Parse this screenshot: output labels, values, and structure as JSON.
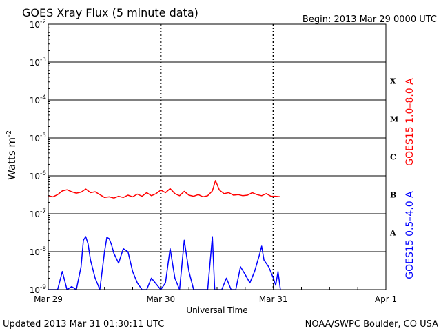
{
  "header": {
    "title": "GOES Xray Flux (5 minute data)",
    "begin": "Begin:  2013 Mar 29 0000 UTC"
  },
  "footer": {
    "updated": "Updated 2013 Mar 31 01:30:11 UTC",
    "credit": "NOAA/SWPC Boulder, CO USA"
  },
  "colors": {
    "long_channel": "#ff0000",
    "short_channel": "#0000ff",
    "axes": "#000000",
    "background": "#ffffff"
  },
  "chart_data": {
    "type": "line",
    "title": "GOES Xray Flux (5 minute data)",
    "xlabel": "Universal Time",
    "ylabel_base": "Watts m",
    "ylabel_exp": "-2",
    "y_scale": "log",
    "ylim": [
      1e-09,
      0.01
    ],
    "xlim": [
      "2013-03-29",
      "2013-04-01"
    ],
    "x_ticks": [
      {
        "label": "Mar 29",
        "x": "2013-03-29"
      },
      {
        "label": "Mar 30",
        "x": "2013-03-30"
      },
      {
        "label": "Mar 31",
        "x": "2013-03-31"
      },
      {
        "label": "Apr 1",
        "x": "2013-04-01"
      }
    ],
    "y_ticks": [
      {
        "base": "10",
        "exp": "-2",
        "value": 0.01
      },
      {
        "base": "10",
        "exp": "-3",
        "value": 0.001
      },
      {
        "base": "10",
        "exp": "-4",
        "value": 0.0001
      },
      {
        "base": "10",
        "exp": "-5",
        "value": 1e-05
      },
      {
        "base": "10",
        "exp": "-6",
        "value": 1e-06
      },
      {
        "base": "10",
        "exp": "-7",
        "value": 1e-07
      },
      {
        "base": "10",
        "exp": "-8",
        "value": 1e-08
      },
      {
        "base": "10",
        "exp": "-9",
        "value": 1e-09
      }
    ],
    "flare_classes": [
      {
        "label": "X",
        "value": 0.000316
      },
      {
        "label": "M",
        "value": 3.16e-05
      },
      {
        "label": "C",
        "value": 3.16e-06
      },
      {
        "label": "B",
        "value": 3.16e-07
      },
      {
        "label": "A",
        "value": 3.16e-08
      }
    ],
    "grid": true,
    "series": [
      {
        "name": "GOES15 1.0–8.0 A",
        "color": "#ff0000",
        "points": [
          [
            "2013-03-29 00:00",
            3e-07
          ],
          [
            "2013-03-29 01:00",
            2.8e-07
          ],
          [
            "2013-03-29 02:00",
            3.2e-07
          ],
          [
            "2013-03-29 03:00",
            4e-07
          ],
          [
            "2013-03-29 04:00",
            4.3e-07
          ],
          [
            "2013-03-29 05:00",
            3.8e-07
          ],
          [
            "2013-03-29 06:00",
            3.5e-07
          ],
          [
            "2013-03-29 07:00",
            3.7e-07
          ],
          [
            "2013-03-29 08:00",
            4.5e-07
          ],
          [
            "2013-03-29 09:00",
            3.6e-07
          ],
          [
            "2013-03-29 10:00",
            3.8e-07
          ],
          [
            "2013-03-29 12:00",
            2.7e-07
          ],
          [
            "2013-03-29 13:00",
            2.8e-07
          ],
          [
            "2013-03-29 14:00",
            2.6e-07
          ],
          [
            "2013-03-29 15:00",
            2.9e-07
          ],
          [
            "2013-03-29 16:00",
            2.7e-07
          ],
          [
            "2013-03-29 17:00",
            3.1e-07
          ],
          [
            "2013-03-29 18:00",
            2.8e-07
          ],
          [
            "2013-03-29 19:00",
            3.3e-07
          ],
          [
            "2013-03-29 20:00",
            2.9e-07
          ],
          [
            "2013-03-29 21:00",
            3.6e-07
          ],
          [
            "2013-03-29 22:00",
            3e-07
          ],
          [
            "2013-03-29 23:00",
            3.4e-07
          ],
          [
            "2013-03-30 00:00",
            4.2e-07
          ],
          [
            "2013-03-30 01:00",
            3.6e-07
          ],
          [
            "2013-03-30 02:00",
            4.6e-07
          ],
          [
            "2013-03-30 03:00",
            3.4e-07
          ],
          [
            "2013-03-30 04:00",
            3e-07
          ],
          [
            "2013-03-30 05:00",
            3.9e-07
          ],
          [
            "2013-03-30 06:00",
            3.1e-07
          ],
          [
            "2013-03-30 07:00",
            2.9e-07
          ],
          [
            "2013-03-30 08:00",
            3.2e-07
          ],
          [
            "2013-03-30 09:00",
            2.8e-07
          ],
          [
            "2013-03-30 10:00",
            3e-07
          ],
          [
            "2013-03-30 11:00",
            4e-07
          ],
          [
            "2013-03-30 11:40",
            7.5e-07
          ],
          [
            "2013-03-30 12:30",
            4.2e-07
          ],
          [
            "2013-03-30 13:30",
            3.4e-07
          ],
          [
            "2013-03-30 14:30",
            3.6e-07
          ],
          [
            "2013-03-30 15:30",
            3.1e-07
          ],
          [
            "2013-03-30 16:30",
            3.2e-07
          ],
          [
            "2013-03-30 17:30",
            3e-07
          ],
          [
            "2013-03-30 18:30",
            3.1e-07
          ],
          [
            "2013-03-30 19:30",
            3.6e-07
          ],
          [
            "2013-03-30 20:30",
            3.2e-07
          ],
          [
            "2013-03-30 21:30",
            3e-07
          ],
          [
            "2013-03-30 22:30",
            3.4e-07
          ],
          [
            "2013-03-30 23:30",
            2.9e-07
          ],
          [
            "2013-03-31 00:30",
            2.9e-07
          ],
          [
            "2013-03-31 01:30",
            2.8e-07
          ]
        ]
      },
      {
        "name": "GOES15 0.5–4.0 A",
        "color": "#0000ff",
        "points": [
          [
            "2013-03-29 00:00",
            1e-09
          ],
          [
            "2013-03-29 02:00",
            1e-09
          ],
          [
            "2013-03-29 03:00",
            3e-09
          ],
          [
            "2013-03-29 04:00",
            1e-09
          ],
          [
            "2013-03-29 05:00",
            1.2e-09
          ],
          [
            "2013-03-29 06:00",
            1e-09
          ],
          [
            "2013-03-29 07:00",
            4e-09
          ],
          [
            "2013-03-29 07:30",
            2e-08
          ],
          [
            "2013-03-29 08:00",
            2.5e-08
          ],
          [
            "2013-03-29 08:30",
            1.6e-08
          ],
          [
            "2013-03-29 09:00",
            6e-09
          ],
          [
            "2013-03-29 10:00",
            2e-09
          ],
          [
            "2013-03-29 11:00",
            1e-09
          ],
          [
            "2013-03-29 12:00",
            1e-08
          ],
          [
            "2013-03-29 12:30",
            2.4e-08
          ],
          [
            "2013-03-29 13:00",
            2.2e-08
          ],
          [
            "2013-03-29 13:30",
            1.5e-08
          ],
          [
            "2013-03-29 14:00",
            9e-09
          ],
          [
            "2013-03-29 15:00",
            5e-09
          ],
          [
            "2013-03-29 16:00",
            1.2e-08
          ],
          [
            "2013-03-29 17:00",
            1e-08
          ],
          [
            "2013-03-29 18:00",
            3e-09
          ],
          [
            "2013-03-29 19:00",
            1.5e-09
          ],
          [
            "2013-03-29 20:00",
            1e-09
          ],
          [
            "2013-03-29 21:00",
            1e-09
          ],
          [
            "2013-03-29 22:00",
            2e-09
          ],
          [
            "2013-03-30 00:00",
            1e-09
          ],
          [
            "2013-03-30 01:00",
            1.5e-09
          ],
          [
            "2013-03-30 02:00",
            1.2e-08
          ],
          [
            "2013-03-30 03:00",
            2e-09
          ],
          [
            "2013-03-30 04:00",
            1e-09
          ],
          [
            "2013-03-30 05:00",
            2e-08
          ],
          [
            "2013-03-30 06:00",
            3e-09
          ],
          [
            "2013-03-30 07:00",
            1e-09
          ],
          [
            "2013-03-30 08:00",
            1e-09
          ],
          [
            "2013-03-30 09:00",
            1e-09
          ],
          [
            "2013-03-30 10:00",
            1e-09
          ],
          [
            "2013-03-30 11:00",
            2.5e-08
          ],
          [
            "2013-03-30 11:30",
            1e-09
          ],
          [
            "2013-03-30 13:00",
            1e-09
          ],
          [
            "2013-03-30 14:00",
            2e-09
          ],
          [
            "2013-03-30 15:00",
            1e-09
          ],
          [
            "2013-03-30 16:00",
            1e-09
          ],
          [
            "2013-03-30 17:00",
            4e-09
          ],
          [
            "2013-03-30 18:00",
            2.5e-09
          ],
          [
            "2013-03-30 19:00",
            1.5e-09
          ],
          [
            "2013-03-30 20:00",
            3e-09
          ],
          [
            "2013-03-30 21:00",
            8e-09
          ],
          [
            "2013-03-30 21:30",
            1.4e-08
          ],
          [
            "2013-03-30 22:00",
            6e-09
          ],
          [
            "2013-03-30 23:00",
            4e-09
          ],
          [
            "2013-03-31 00:00",
            2e-09
          ],
          [
            "2013-03-31 00:30",
            1.3e-09
          ],
          [
            "2013-03-31 01:00",
            3e-09
          ],
          [
            "2013-03-31 01:30",
            1e-09
          ]
        ]
      }
    ]
  }
}
